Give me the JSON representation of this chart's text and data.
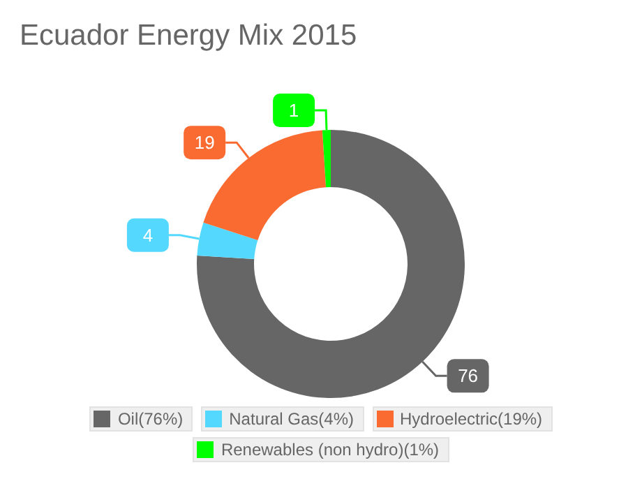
{
  "chart_data": {
    "type": "donut",
    "title": "Ecuador Energy Mix 2015",
    "categories": [
      "Oil(76%)",
      "Natural Gas(4%)",
      "Hydroelectric(19%)",
      "Renewables (non hydro)(1%)"
    ],
    "values": [
      76,
      4,
      19,
      1
    ],
    "colors": [
      "#666666",
      "#55d8fe",
      "#fa6b32",
      "#00ff00"
    ],
    "data_labels": true,
    "legend": "bottom"
  }
}
